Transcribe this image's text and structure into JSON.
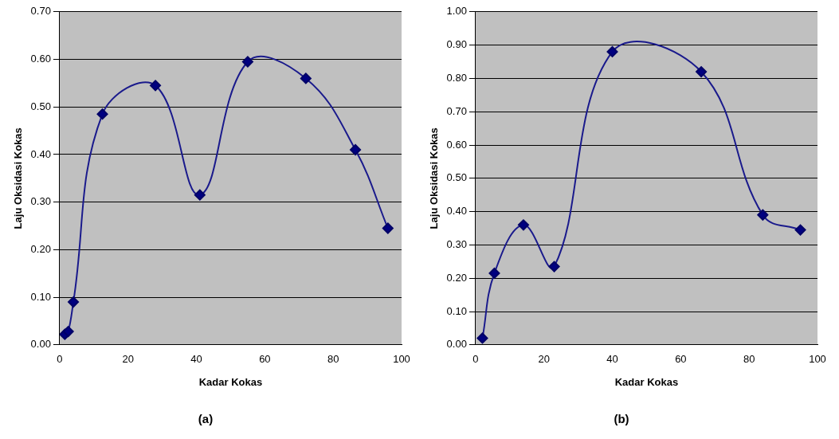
{
  "chart_data": [
    {
      "type": "line",
      "title": "(a)",
      "x_label": "Kadar Kokas",
      "y_label": "Laju Oksidasi Kokas",
      "series": [
        {
          "name": "Laju Oksidasi Kokas",
          "color": "#1a1a8c",
          "marker": "diamond",
          "line_style": "smooth",
          "x": [
            1.5,
            2.5,
            4,
            12.5,
            28,
            41,
            55,
            72,
            86.5,
            96
          ],
          "values": [
            0.022,
            0.028,
            0.09,
            0.485,
            0.545,
            0.315,
            0.595,
            0.56,
            0.41,
            0.245
          ]
        }
      ],
      "xlim": [
        0,
        100
      ],
      "xticks": [
        0,
        20,
        40,
        60,
        80,
        100
      ],
      "ylim": [
        0,
        0.7
      ],
      "yticks": [
        {
          "value": 0,
          "label": "0.00"
        },
        {
          "value": 0.1,
          "label": "0.10"
        },
        {
          "value": 0.2,
          "label": "0.20"
        },
        {
          "value": 0.3,
          "label": "0.30"
        },
        {
          "value": 0.4,
          "label": "0.40"
        },
        {
          "value": 0.5,
          "label": "0.50"
        },
        {
          "value": 0.6,
          "label": "0.60"
        },
        {
          "value": 0.7,
          "label": "0.70"
        }
      ],
      "grid": true
    },
    {
      "type": "line",
      "title": "(b)",
      "x_label": "Kadar Kokas",
      "y_label": "Laju Oksidasi Kokas",
      "series": [
        {
          "name": "Laju Oksidasi Kokas",
          "color": "#1a1a8c",
          "marker": "diamond",
          "line_style": "smooth",
          "x": [
            2,
            5.5,
            14,
            23,
            40,
            66,
            84,
            95
          ],
          "values": [
            0.02,
            0.215,
            0.36,
            0.235,
            0.88,
            0.82,
            0.39,
            0.345
          ]
        }
      ],
      "xlim": [
        0,
        100
      ],
      "xticks": [
        0,
        20,
        40,
        60,
        80,
        100
      ],
      "ylim": [
        0,
        1
      ],
      "yticks": [
        {
          "value": 0,
          "label": "0.00"
        },
        {
          "value": 0.1,
          "label": "0.10"
        },
        {
          "value": 0.2,
          "label": "0.20"
        },
        {
          "value": 0.3,
          "label": "0.30"
        },
        {
          "value": 0.4,
          "label": "0.40"
        },
        {
          "value": 0.5,
          "label": "0.50"
        },
        {
          "value": 0.6,
          "label": "0.60"
        },
        {
          "value": 0.7,
          "label": "0.70"
        },
        {
          "value": 0.8,
          "label": "0.80"
        },
        {
          "value": 0.9,
          "label": "0.90"
        },
        {
          "value": 1,
          "label": "1.00"
        }
      ],
      "grid": true
    }
  ]
}
